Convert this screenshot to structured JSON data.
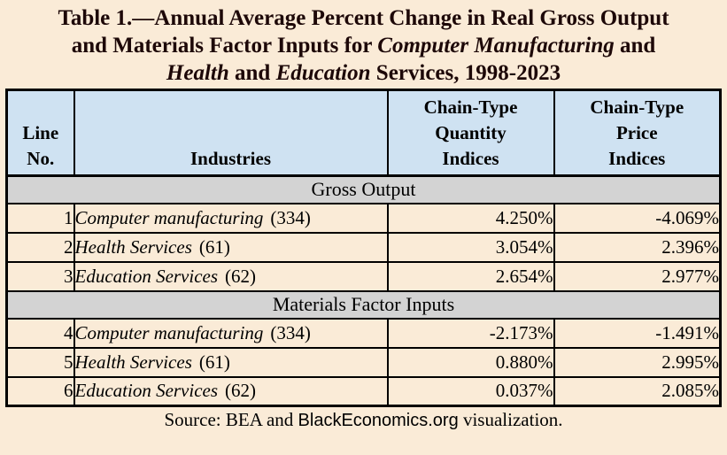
{
  "title": {
    "lines": [
      {
        "segments": [
          {
            "text": "Table 1.—Annual Average Percent Change in Real Gross Output",
            "italic": false
          }
        ]
      },
      {
        "segments": [
          {
            "text": "and Materials Factor Inputs for ",
            "italic": false
          },
          {
            "text": "Computer Manufacturing",
            "italic": true
          },
          {
            "text": " and",
            "italic": false
          }
        ]
      },
      {
        "segments": [
          {
            "text": "Health",
            "italic": true
          },
          {
            "text": " and ",
            "italic": false
          },
          {
            "text": "Education",
            "italic": true
          },
          {
            "text": " Services, 1998-2023",
            "italic": false
          }
        ]
      }
    ]
  },
  "table": {
    "headers": {
      "line_no": "Line\nNo.",
      "industries": "Industries",
      "quantity": "Chain-Type\nQuantity\nIndices",
      "price": "Chain-Type\nPrice\nIndices"
    },
    "sections": [
      {
        "title": "Gross Output",
        "rows": [
          {
            "line": "1",
            "industry": "Computer manufacturing",
            "code": "(334)",
            "quantity": "4.250%",
            "price": "-4.069%"
          },
          {
            "line": "2",
            "industry": "Health Services",
            "code": "(61)",
            "quantity": "3.054%",
            "price": "2.396%"
          },
          {
            "line": "3",
            "industry": "Education Services",
            "code": "(62)",
            "quantity": "2.654%",
            "price": "2.977%"
          }
        ]
      },
      {
        "title": "Materials Factor Inputs",
        "rows": [
          {
            "line": "4",
            "industry": "Computer manufacturing",
            "code": "(334)",
            "quantity": "-2.173%",
            "price": "-1.491%"
          },
          {
            "line": "5",
            "industry": "Health Services",
            "code": "(61)",
            "quantity": "0.880%",
            "price": "2.995%"
          },
          {
            "line": "6",
            "industry": "Education Services",
            "code": "(62)",
            "quantity": "0.037%",
            "price": "2.085%"
          }
        ]
      }
    ]
  },
  "footer": {
    "segments": [
      {
        "text": "Source: BEA and ",
        "sans": false
      },
      {
        "text": "BlackEconomics.org",
        "sans": true
      },
      {
        "text": " visualization.",
        "sans": false
      }
    ]
  },
  "colors": {
    "page_background": "#FAEBD7",
    "header_blue": "#CFE2F2",
    "section_grey": "#D3D3D3",
    "border_black": "#000000",
    "title_text": "#1d0808"
  },
  "chart_data": {
    "type": "table",
    "title": "Table 1.—Annual Average Percent Change in Real Gross Output and Materials Factor Inputs for Computer Manufacturing and Health and Education Services, 1998-2023",
    "columns": [
      "Line No.",
      "Industries",
      "Chain-Type Quantity Indices",
      "Chain-Type Price Indices"
    ],
    "sections": [
      {
        "label": "Gross Output",
        "rows": [
          [
            1,
            "Computer manufacturing (334)",
            "4.250%",
            "-4.069%"
          ],
          [
            2,
            "Health Services (61)",
            "3.054%",
            "2.396%"
          ],
          [
            3,
            "Education Services (62)",
            "2.654%",
            "2.977%"
          ]
        ]
      },
      {
        "label": "Materials Factor Inputs",
        "rows": [
          [
            4,
            "Computer manufacturing (334)",
            "-2.173%",
            "-1.491%"
          ],
          [
            5,
            "Health Services (61)",
            "0.880%",
            "2.995%"
          ],
          [
            6,
            "Education Services (62)",
            "0.037%",
            "2.085%"
          ]
        ]
      }
    ],
    "units": "annual average percent change",
    "period": "1998-2023",
    "source": "Source: BEA and BlackEconomics.org visualization."
  }
}
